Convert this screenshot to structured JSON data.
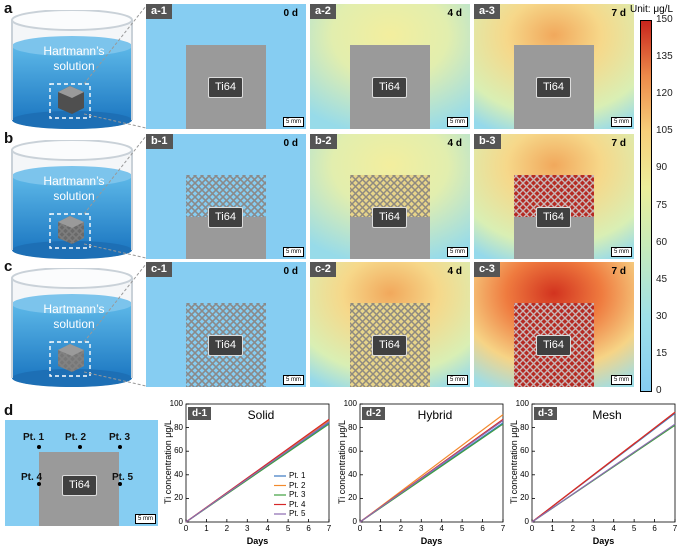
{
  "rows": [
    {
      "label": "a",
      "beaker_text": "Hartmann’s solution",
      "panels": [
        {
          "tag": "a-1",
          "day": "0 d",
          "ti": "Ti64",
          "level": 0
        },
        {
          "tag": "a-2",
          "day": "4 d",
          "ti": "Ti64",
          "level": 1
        },
        {
          "tag": "a-3",
          "day": "7 d",
          "ti": "Ti64",
          "level": 2
        }
      ]
    },
    {
      "label": "b",
      "beaker_text": "Hartmann’s solution",
      "panels": [
        {
          "tag": "b-1",
          "day": "0 d",
          "ti": "Ti64",
          "level": 0
        },
        {
          "tag": "b-2",
          "day": "4 d",
          "ti": "Ti64",
          "level": 1
        },
        {
          "tag": "b-3",
          "day": "7 d",
          "ti": "Ti64",
          "level": 2
        }
      ]
    },
    {
      "label": "c",
      "beaker_text": "Hartmann’s solution",
      "panels": [
        {
          "tag": "c-1",
          "day": "0 d",
          "ti": "Ti64",
          "level": 0
        },
        {
          "tag": "c-2",
          "day": "4 d",
          "ti": "Ti64",
          "level": 1
        },
        {
          "tag": "c-3",
          "day": "7 d",
          "ti": "Ti64",
          "level": 2
        }
      ]
    }
  ],
  "scale_bar": "5 mm",
  "colorbar": {
    "title": "Unit: μg/L",
    "ticks": [
      "150",
      "135",
      "120",
      "105",
      "90",
      "75",
      "60",
      "45",
      "30",
      "15",
      "0"
    ]
  },
  "panel_d": {
    "label": "d",
    "ti": "Ti64",
    "scale_bar": "5 mm",
    "points": [
      "Pt. 1",
      "Pt. 2",
      "Pt. 3",
      "Pt. 4",
      "Pt. 5"
    ]
  },
  "chart_data": [
    {
      "type": "line",
      "tag": "d-1",
      "title": "Solid",
      "xlabel": "Days",
      "ylabel": "Ti concentration μg/L",
      "xlim": [
        0,
        7
      ],
      "ylim": [
        0,
        100
      ],
      "xticks": [
        "0",
        "1",
        "2",
        "3",
        "4",
        "5",
        "6",
        "7"
      ],
      "yticks": [
        "0",
        "20",
        "40",
        "60",
        "80",
        "100"
      ],
      "legend": [
        "Pt. 1",
        "Pt. 2",
        "Pt. 3",
        "Pt. 4",
        "Pt. 5"
      ],
      "x": [
        0,
        7
      ],
      "series": [
        {
          "name": "Pt. 1",
          "color": "#3a78c2",
          "values": [
            0,
            84
          ]
        },
        {
          "name": "Pt. 2",
          "color": "#f28a2e",
          "values": [
            0,
            86
          ]
        },
        {
          "name": "Pt. 3",
          "color": "#3f9f3f",
          "values": [
            0,
            83
          ]
        },
        {
          "name": "Pt. 4",
          "color": "#d62728",
          "values": [
            0,
            87
          ]
        },
        {
          "name": "Pt. 5",
          "color": "#8c6bb1",
          "values": [
            0,
            85
          ]
        }
      ]
    },
    {
      "type": "line",
      "tag": "d-2",
      "title": "Hybrid",
      "xlabel": "Days",
      "ylabel": "Ti concentration μg/L",
      "xlim": [
        0,
        7
      ],
      "ylim": [
        0,
        100
      ],
      "xticks": [
        "0",
        "1",
        "2",
        "3",
        "4",
        "5",
        "6",
        "7"
      ],
      "yticks": [
        "0",
        "20",
        "40",
        "60",
        "80",
        "100"
      ],
      "x": [
        0,
        7
      ],
      "series": [
        {
          "name": "Pt. 1",
          "color": "#3a78c2",
          "values": [
            0,
            84
          ]
        },
        {
          "name": "Pt. 2",
          "color": "#f28a2e",
          "values": [
            0,
            91
          ]
        },
        {
          "name": "Pt. 3",
          "color": "#3f9f3f",
          "values": [
            0,
            83
          ]
        },
        {
          "name": "Pt. 4",
          "color": "#d62728",
          "values": [
            0,
            87
          ]
        },
        {
          "name": "Pt. 5",
          "color": "#8c6bb1",
          "values": [
            0,
            86
          ]
        }
      ]
    },
    {
      "type": "line",
      "tag": "d-3",
      "title": "Mesh",
      "xlabel": "Days",
      "ylabel": "Ti concentration μg/L",
      "xlim": [
        0,
        7
      ],
      "ylim": [
        0,
        100
      ],
      "xticks": [
        "0",
        "1",
        "2",
        "3",
        "4",
        "5",
        "6",
        "7"
      ],
      "yticks": [
        "0",
        "20",
        "40",
        "60",
        "80",
        "100"
      ],
      "x": [
        0,
        7
      ],
      "series": [
        {
          "name": "Pt. 1",
          "color": "#3a78c2",
          "values": [
            0,
            92
          ]
        },
        {
          "name": "Pt. 2",
          "color": "#f28a2e",
          "values": [
            0,
            93
          ]
        },
        {
          "name": "Pt. 3",
          "color": "#3f9f3f",
          "values": [
            0,
            82
          ]
        },
        {
          "name": "Pt. 4",
          "color": "#d62728",
          "values": [
            0,
            93
          ]
        },
        {
          "name": "Pt. 5",
          "color": "#8c6bb1",
          "values": [
            0,
            83
          ]
        }
      ]
    }
  ]
}
